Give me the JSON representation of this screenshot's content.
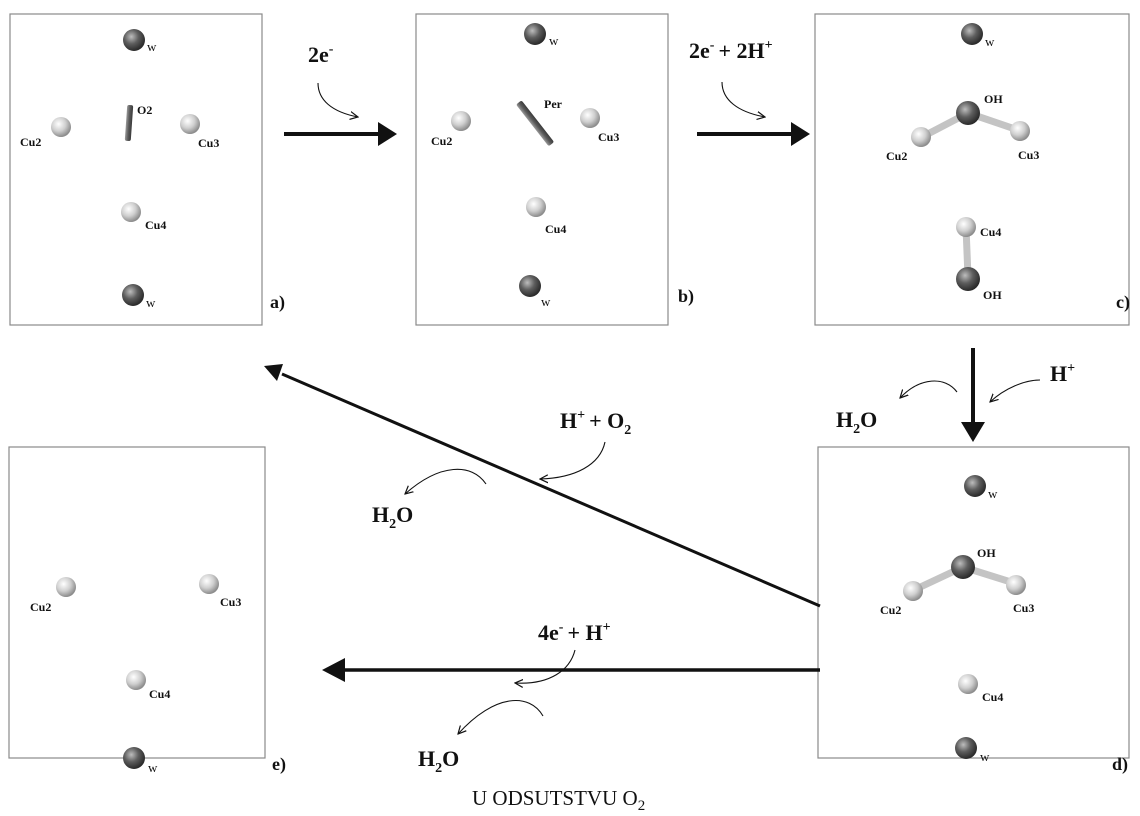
{
  "panels": {
    "a": {
      "letter": "a)",
      "w_top": "w",
      "o2": "O2",
      "cu2": "Cu2",
      "cu3": "Cu3",
      "cu4": "Cu4",
      "w_bottom": "w"
    },
    "b": {
      "letter": "b)",
      "w_top": "w",
      "per": "Per",
      "cu2": "Cu2",
      "cu3": "Cu3",
      "cu4": "Cu4",
      "w_bottom": "w"
    },
    "c": {
      "letter": "c)",
      "w_top": "w",
      "oh_top": "OH",
      "cu2": "Cu2",
      "cu3": "Cu3",
      "cu4": "Cu4",
      "oh_bottom": "OH"
    },
    "d": {
      "letter": "d)",
      "w_top": "w",
      "oh": "OH",
      "cu2": "Cu2",
      "cu3": "Cu3",
      "cu4": "Cu4",
      "w_bottom": "w"
    },
    "e": {
      "letter": "e)",
      "cu2": "Cu2",
      "cu3": "Cu3",
      "cu4": "Cu4",
      "w": "w"
    }
  },
  "reactions": {
    "a_to_b": {
      "electrons": "2e",
      "charge": "-"
    },
    "b_to_c": {
      "electrons": "2e",
      "charge": "-",
      "plus": "+ 2H",
      "proton_charge": "+"
    },
    "c_to_d_in": {
      "species": "H",
      "charge": "+"
    },
    "c_to_d_out": {
      "species": "H",
      "sub": "2",
      "rest": "O"
    },
    "d_to_a_in": {
      "species": "H",
      "charge": "+",
      "plus": "+ O",
      "sub": "2"
    },
    "d_to_a_out": {
      "species": "H",
      "sub": "2",
      "rest": "O"
    },
    "d_to_e_in": {
      "electrons": "4e",
      "charge": "-",
      "plus": "+ H",
      "proton_charge": "+"
    },
    "d_to_e_out": {
      "species": "H",
      "sub": "2",
      "rest": "O"
    }
  },
  "caption": {
    "text": "U ODSUTSTVU O",
    "sub": "2"
  },
  "colors": {
    "cu_atom": "#d8d8d8",
    "w_atom": "#5a5a5a",
    "o_atom": "#6a6a6a",
    "bond": "#bdbdbd",
    "arrow": "#111111"
  }
}
